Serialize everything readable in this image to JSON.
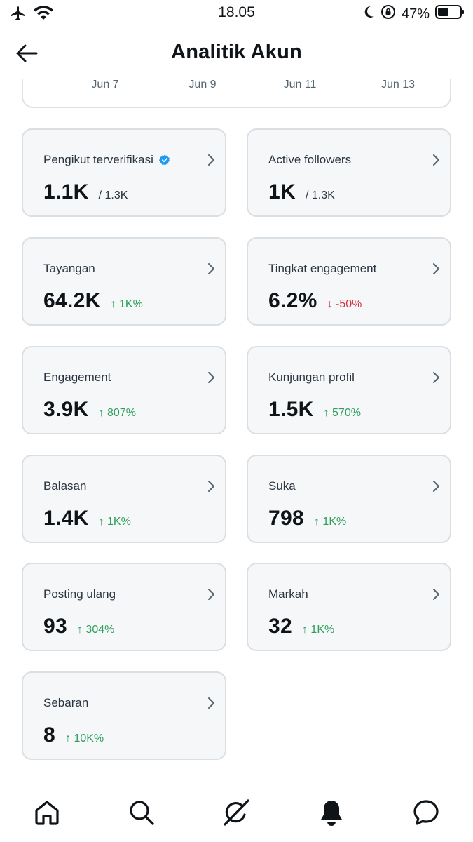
{
  "status": {
    "time": "18.05",
    "battery": "47%"
  },
  "header": {
    "title": "Analitik Akun"
  },
  "chart": {
    "x_ticks": [
      "Jun 7",
      "Jun 9",
      "Jun 11",
      "Jun 13"
    ]
  },
  "metrics": [
    {
      "label": "Pengikut terverifikasi",
      "value": "1.1K",
      "sub": "/ 1.3K",
      "delta": "",
      "trend": "",
      "verified": true
    },
    {
      "label": "Active followers",
      "value": "1K",
      "sub": "/ 1.3K",
      "delta": "",
      "trend": ""
    },
    {
      "label": "Tayangan",
      "value": "64.2K",
      "sub": "",
      "delta": "↑ 1K%",
      "trend": "up"
    },
    {
      "label": "Tingkat engagement",
      "value": "6.2%",
      "sub": "",
      "delta": "↓ -50%",
      "trend": "down"
    },
    {
      "label": "Engagement",
      "value": "3.9K",
      "sub": "",
      "delta": "↑ 807%",
      "trend": "up"
    },
    {
      "label": "Kunjungan profil",
      "value": "1.5K",
      "sub": "",
      "delta": "↑ 570%",
      "trend": "up"
    },
    {
      "label": "Balasan",
      "value": "1.4K",
      "sub": "",
      "delta": "↑ 1K%",
      "trend": "up"
    },
    {
      "label": "Suka",
      "value": "798",
      "sub": "",
      "delta": "↑ 1K%",
      "trend": "up"
    },
    {
      "label": "Posting ulang",
      "value": "93",
      "sub": "",
      "delta": "↑ 304%",
      "trend": "up"
    },
    {
      "label": "Markah",
      "value": "32",
      "sub": "",
      "delta": "↑ 1K%",
      "trend": "up"
    },
    {
      "label": "Sebaran",
      "value": "8",
      "sub": "",
      "delta": "↑ 10K%",
      "trend": "up"
    }
  ],
  "colors": {
    "up": "#2e9e5b",
    "down": "#d0333f",
    "verified": "#1d9bf0"
  },
  "nav": {
    "items": [
      "home-icon",
      "search-icon",
      "grok-icon",
      "notifications-icon",
      "messages-icon"
    ]
  }
}
